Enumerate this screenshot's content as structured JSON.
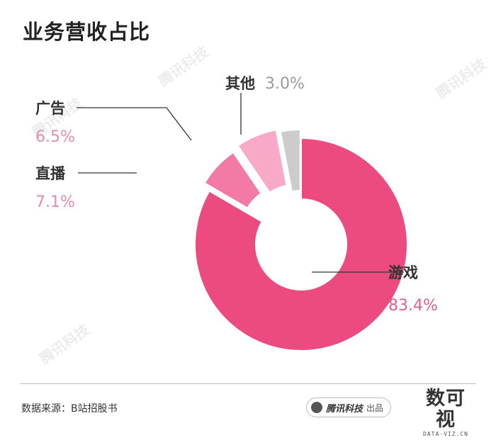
{
  "title": "业务营收占比",
  "chart_data": {
    "type": "pie",
    "variant": "donut-exploded",
    "title": "业务营收占比",
    "slices": [
      {
        "label": "游戏",
        "value": 83.4,
        "value_label": "83.4%",
        "color": "#ec4b80",
        "pct_color": "#e05f8d"
      },
      {
        "label": "直播",
        "value": 7.1,
        "value_label": "7.1%",
        "color": "#f27aa4",
        "pct_color": "#e98aab"
      },
      {
        "label": "广告",
        "value": 6.5,
        "value_label": "6.5%",
        "color": "#f8a9c6",
        "pct_color": "#e98aab"
      },
      {
        "label": "其他",
        "value": 3.0,
        "value_label": "3.0%",
        "color": "#cccccc",
        "pct_color": "#9a9a9a"
      }
    ]
  },
  "footer": {
    "source": "数据来源：B站招股书",
    "badge_brand": "腾讯科技",
    "badge_suffix": "出品",
    "logo_mark": "数可视",
    "logo_sub": "DATA-VIZ.CN"
  },
  "watermark": "腾讯科技"
}
